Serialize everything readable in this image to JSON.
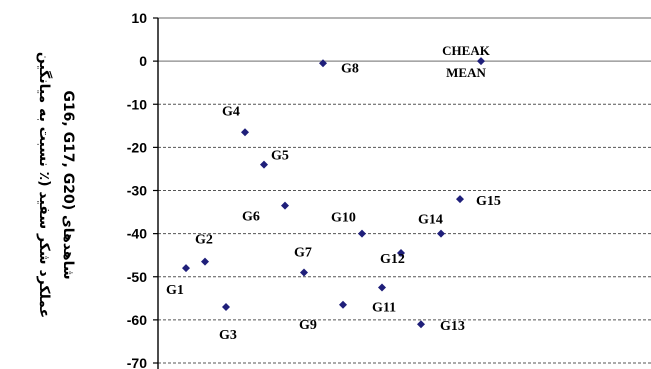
{
  "chart_data": {
    "type": "scatter",
    "ylabel_line1": "عملکرد شکر سفید (٪ نسبت به میانگین",
    "ylabel_line2": "شاهدهای (G16, G17, G20",
    "ylim": [
      -70,
      10
    ],
    "yticks": [
      10,
      0,
      -10,
      -20,
      -30,
      -40,
      -50,
      -60,
      -70
    ],
    "grid": "horizontal dashed",
    "marker_color": "#1f1f7a",
    "reference_label": [
      "CHEAK",
      "MEAN"
    ],
    "points": [
      {
        "label": "G1",
        "x": 1,
        "y": -48
      },
      {
        "label": "G2",
        "x": 2,
        "y": -46.5
      },
      {
        "label": "G3",
        "x": 3,
        "y": -57
      },
      {
        "label": "G4",
        "x": 4,
        "y": -16.5
      },
      {
        "label": "G5",
        "x": 5,
        "y": -24
      },
      {
        "label": "G6",
        "x": 6,
        "y": -33.5
      },
      {
        "label": "G7",
        "x": 7,
        "y": -49
      },
      {
        "label": "G8",
        "x": 8,
        "y": -0.5
      },
      {
        "label": "G9",
        "x": 9,
        "y": -56.5
      },
      {
        "label": "G10",
        "x": 10,
        "y": -40
      },
      {
        "label": "G11",
        "x": 11,
        "y": -52.5
      },
      {
        "label": "G12",
        "x": 12,
        "y": -44.5
      },
      {
        "label": "G13",
        "x": 13,
        "y": -61
      },
      {
        "label": "G14",
        "x": 14,
        "y": -40
      },
      {
        "label": "G15",
        "x": 15,
        "y": -32
      },
      {
        "label": "",
        "x": 16,
        "y": 0
      }
    ]
  }
}
